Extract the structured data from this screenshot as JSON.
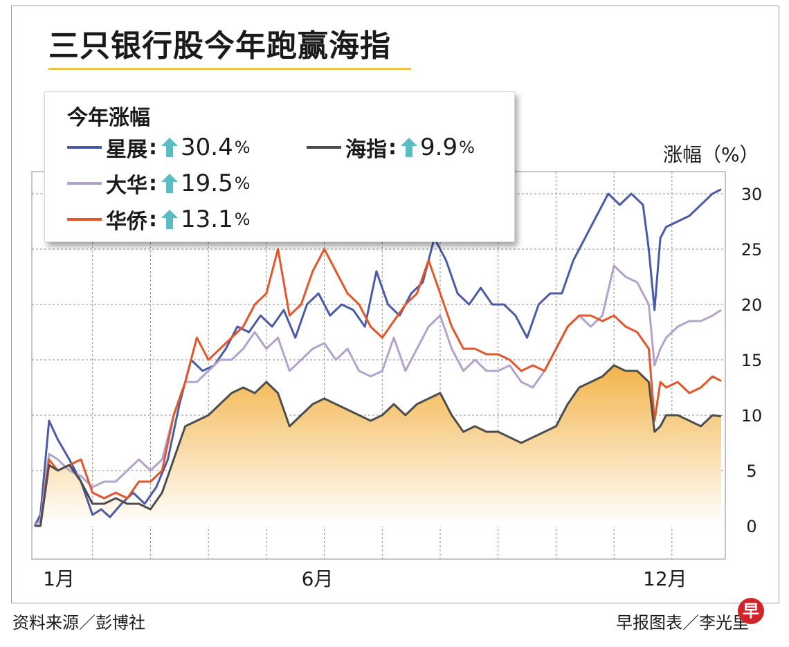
{
  "title": "三只银行股今年跑赢海指",
  "legend": {
    "heading": "今年涨幅",
    "items": [
      {
        "name": "星展",
        "colon": ":",
        "value": "30.4",
        "unit": "%",
        "color": "#4a5aa6"
      },
      {
        "name": "海指",
        "colon": ":",
        "value": "9.9",
        "unit": "%",
        "color": "#4d4d4d"
      },
      {
        "name": "大华",
        "colon": ":",
        "value": "19.5",
        "unit": "%",
        "color": "#b4a2ce"
      },
      {
        "name": "华侨",
        "colon": ":",
        "value": "13.1",
        "unit": "%",
        "color": "#e4552a"
      }
    ],
    "arrow_color": "#5bbdc4",
    "arrow_icon": "up-arrow-icon"
  },
  "y_unit_label": "涨幅（%）",
  "footer": {
    "source": "资料来源／彭博社",
    "credit": "早报图表／李光里"
  },
  "logo_text": "早",
  "chart_data": {
    "type": "line",
    "title": "三只银行股今年跑赢海指",
    "xlabel": "",
    "ylabel": "涨幅（%）",
    "x_ticks": [
      {
        "label": "1月",
        "month": 1
      },
      {
        "label": "6月",
        "month": 6
      },
      {
        "label": "12月",
        "month": 12
      }
    ],
    "x_range_months": [
      1,
      12.85
    ],
    "ylim": [
      -3,
      32
    ],
    "y_ticks": [
      0,
      5,
      10,
      15,
      20,
      25,
      30
    ],
    "grid": true,
    "legend_position": "top-left",
    "index_fill": {
      "top_color": "#f2b44a",
      "bottom_color": "#ffffff"
    },
    "series": [
      {
        "name": "星展",
        "color": "#4a5aa6",
        "points": [
          [
            1.0,
            0
          ],
          [
            1.1,
            1
          ],
          [
            1.25,
            9.5
          ],
          [
            1.4,
            7.8
          ],
          [
            1.6,
            6
          ],
          [
            1.8,
            4
          ],
          [
            2.0,
            1
          ],
          [
            2.15,
            1.5
          ],
          [
            2.3,
            0.8
          ],
          [
            2.5,
            2
          ],
          [
            2.7,
            3
          ],
          [
            2.9,
            2
          ],
          [
            3.1,
            3.5
          ],
          [
            3.3,
            6
          ],
          [
            3.5,
            11
          ],
          [
            3.7,
            15
          ],
          [
            3.9,
            14
          ],
          [
            4.1,
            14.5
          ],
          [
            4.3,
            16
          ],
          [
            4.5,
            18
          ],
          [
            4.7,
            17.5
          ],
          [
            4.9,
            19
          ],
          [
            5.1,
            18
          ],
          [
            5.3,
            19.5
          ],
          [
            5.5,
            17
          ],
          [
            5.7,
            20
          ],
          [
            5.9,
            21
          ],
          [
            6.1,
            19
          ],
          [
            6.3,
            20
          ],
          [
            6.5,
            19.5
          ],
          [
            6.7,
            18
          ],
          [
            6.9,
            23
          ],
          [
            7.1,
            20
          ],
          [
            7.3,
            19
          ],
          [
            7.5,
            21
          ],
          [
            7.7,
            22
          ],
          [
            7.9,
            26
          ],
          [
            8.1,
            24
          ],
          [
            8.3,
            21
          ],
          [
            8.5,
            20
          ],
          [
            8.7,
            21.5
          ],
          [
            8.9,
            20
          ],
          [
            9.1,
            20
          ],
          [
            9.3,
            19
          ],
          [
            9.5,
            17
          ],
          [
            9.7,
            20
          ],
          [
            9.9,
            21
          ],
          [
            10.1,
            21
          ],
          [
            10.3,
            24
          ],
          [
            10.5,
            26
          ],
          [
            10.7,
            28
          ],
          [
            10.9,
            30
          ],
          [
            11.1,
            29
          ],
          [
            11.3,
            30
          ],
          [
            11.5,
            29
          ],
          [
            11.6,
            25
          ],
          [
            11.7,
            19.5
          ],
          [
            11.8,
            26
          ],
          [
            11.9,
            27
          ],
          [
            12.1,
            27.5
          ],
          [
            12.3,
            28
          ],
          [
            12.5,
            29
          ],
          [
            12.7,
            30
          ],
          [
            12.85,
            30.4
          ]
        ]
      },
      {
        "name": "大华",
        "color": "#b4a2ce",
        "points": [
          [
            1.0,
            0
          ],
          [
            1.1,
            0.5
          ],
          [
            1.25,
            6.5
          ],
          [
            1.4,
            6
          ],
          [
            1.6,
            5
          ],
          [
            1.8,
            4.5
          ],
          [
            2.0,
            3.5
          ],
          [
            2.2,
            4
          ],
          [
            2.4,
            4
          ],
          [
            2.6,
            5
          ],
          [
            2.8,
            6
          ],
          [
            3.0,
            5
          ],
          [
            3.2,
            6
          ],
          [
            3.4,
            10
          ],
          [
            3.6,
            13
          ],
          [
            3.8,
            13
          ],
          [
            4.0,
            14
          ],
          [
            4.2,
            15
          ],
          [
            4.4,
            15
          ],
          [
            4.6,
            16
          ],
          [
            4.8,
            17.5
          ],
          [
            5.0,
            16
          ],
          [
            5.2,
            17
          ],
          [
            5.4,
            14
          ],
          [
            5.6,
            15
          ],
          [
            5.8,
            16
          ],
          [
            6.0,
            16.5
          ],
          [
            6.2,
            15
          ],
          [
            6.4,
            16
          ],
          [
            6.6,
            14
          ],
          [
            6.8,
            13.5
          ],
          [
            7.0,
            14
          ],
          [
            7.2,
            17
          ],
          [
            7.4,
            14
          ],
          [
            7.6,
            16
          ],
          [
            7.8,
            18
          ],
          [
            8.0,
            19
          ],
          [
            8.2,
            16
          ],
          [
            8.4,
            14
          ],
          [
            8.6,
            15
          ],
          [
            8.8,
            14
          ],
          [
            9.0,
            14
          ],
          [
            9.2,
            14.5
          ],
          [
            9.4,
            13
          ],
          [
            9.6,
            12.5
          ],
          [
            9.8,
            14
          ],
          [
            10.0,
            16
          ],
          [
            10.2,
            18
          ],
          [
            10.4,
            19
          ],
          [
            10.6,
            18
          ],
          [
            10.8,
            19
          ],
          [
            11.0,
            23.5
          ],
          [
            11.2,
            22.5
          ],
          [
            11.4,
            22
          ],
          [
            11.6,
            20
          ],
          [
            11.7,
            14.5
          ],
          [
            11.8,
            16
          ],
          [
            11.9,
            17
          ],
          [
            12.1,
            18
          ],
          [
            12.3,
            18.5
          ],
          [
            12.5,
            18.5
          ],
          [
            12.7,
            19
          ],
          [
            12.85,
            19.5
          ]
        ]
      },
      {
        "name": "华侨",
        "color": "#e4552a",
        "points": [
          [
            1.0,
            0
          ],
          [
            1.1,
            0
          ],
          [
            1.25,
            6
          ],
          [
            1.4,
            5
          ],
          [
            1.6,
            5.5
          ],
          [
            1.8,
            6
          ],
          [
            2.0,
            3
          ],
          [
            2.2,
            2.5
          ],
          [
            2.4,
            3
          ],
          [
            2.6,
            2.5
          ],
          [
            2.8,
            4
          ],
          [
            3.0,
            4
          ],
          [
            3.2,
            5
          ],
          [
            3.4,
            10
          ],
          [
            3.6,
            13
          ],
          [
            3.8,
            17
          ],
          [
            4.0,
            15
          ],
          [
            4.2,
            16
          ],
          [
            4.4,
            17
          ],
          [
            4.6,
            18
          ],
          [
            4.8,
            20
          ],
          [
            5.0,
            21
          ],
          [
            5.2,
            25
          ],
          [
            5.4,
            19
          ],
          [
            5.6,
            20
          ],
          [
            5.8,
            23
          ],
          [
            6.0,
            25
          ],
          [
            6.2,
            23
          ],
          [
            6.4,
            21
          ],
          [
            6.6,
            20
          ],
          [
            6.8,
            18
          ],
          [
            7.0,
            17
          ],
          [
            7.2,
            18.5
          ],
          [
            7.4,
            20
          ],
          [
            7.6,
            21
          ],
          [
            7.8,
            24
          ],
          [
            8.0,
            21
          ],
          [
            8.2,
            18
          ],
          [
            8.4,
            16
          ],
          [
            8.6,
            16
          ],
          [
            8.8,
            15.5
          ],
          [
            9.0,
            15.5
          ],
          [
            9.2,
            15
          ],
          [
            9.4,
            14
          ],
          [
            9.6,
            14.5
          ],
          [
            9.8,
            14
          ],
          [
            10.0,
            16
          ],
          [
            10.2,
            18
          ],
          [
            10.4,
            19
          ],
          [
            10.6,
            19
          ],
          [
            10.8,
            18.5
          ],
          [
            11.0,
            19
          ],
          [
            11.2,
            18
          ],
          [
            11.4,
            17.5
          ],
          [
            11.6,
            16
          ],
          [
            11.7,
            9.5
          ],
          [
            11.8,
            13
          ],
          [
            11.9,
            12.5
          ],
          [
            12.1,
            13
          ],
          [
            12.3,
            12
          ],
          [
            12.5,
            12.5
          ],
          [
            12.7,
            13.5
          ],
          [
            12.85,
            13.1
          ]
        ]
      },
      {
        "name": "海指",
        "color": "#4d4d4d",
        "points": [
          [
            1.0,
            0
          ],
          [
            1.1,
            0
          ],
          [
            1.25,
            5.5
          ],
          [
            1.4,
            5
          ],
          [
            1.6,
            5.5
          ],
          [
            1.8,
            4
          ],
          [
            2.0,
            2
          ],
          [
            2.2,
            2
          ],
          [
            2.4,
            2.5
          ],
          [
            2.6,
            2
          ],
          [
            2.8,
            2
          ],
          [
            3.0,
            1.5
          ],
          [
            3.2,
            3
          ],
          [
            3.4,
            6
          ],
          [
            3.6,
            9
          ],
          [
            3.8,
            9.5
          ],
          [
            4.0,
            10
          ],
          [
            4.2,
            11
          ],
          [
            4.4,
            12
          ],
          [
            4.6,
            12.5
          ],
          [
            4.8,
            12
          ],
          [
            5.0,
            13
          ],
          [
            5.2,
            12
          ],
          [
            5.4,
            9
          ],
          [
            5.6,
            10
          ],
          [
            5.8,
            11
          ],
          [
            6.0,
            11.5
          ],
          [
            6.2,
            11
          ],
          [
            6.4,
            10.5
          ],
          [
            6.6,
            10
          ],
          [
            6.8,
            9.5
          ],
          [
            7.0,
            10
          ],
          [
            7.2,
            11
          ],
          [
            7.4,
            10
          ],
          [
            7.6,
            11
          ],
          [
            7.8,
            11.5
          ],
          [
            8.0,
            12
          ],
          [
            8.2,
            10
          ],
          [
            8.4,
            8.5
          ],
          [
            8.6,
            9
          ],
          [
            8.8,
            8.5
          ],
          [
            9.0,
            8.5
          ],
          [
            9.2,
            8
          ],
          [
            9.4,
            7.5
          ],
          [
            9.6,
            8
          ],
          [
            9.8,
            8.5
          ],
          [
            10.0,
            9
          ],
          [
            10.2,
            11
          ],
          [
            10.4,
            12.5
          ],
          [
            10.6,
            13
          ],
          [
            10.8,
            13.5
          ],
          [
            11.0,
            14.5
          ],
          [
            11.2,
            14
          ],
          [
            11.4,
            14
          ],
          [
            11.6,
            13
          ],
          [
            11.7,
            8.5
          ],
          [
            11.8,
            9
          ],
          [
            11.9,
            10
          ],
          [
            12.1,
            10
          ],
          [
            12.3,
            9.5
          ],
          [
            12.5,
            9
          ],
          [
            12.7,
            10
          ],
          [
            12.85,
            9.9
          ]
        ]
      }
    ]
  }
}
